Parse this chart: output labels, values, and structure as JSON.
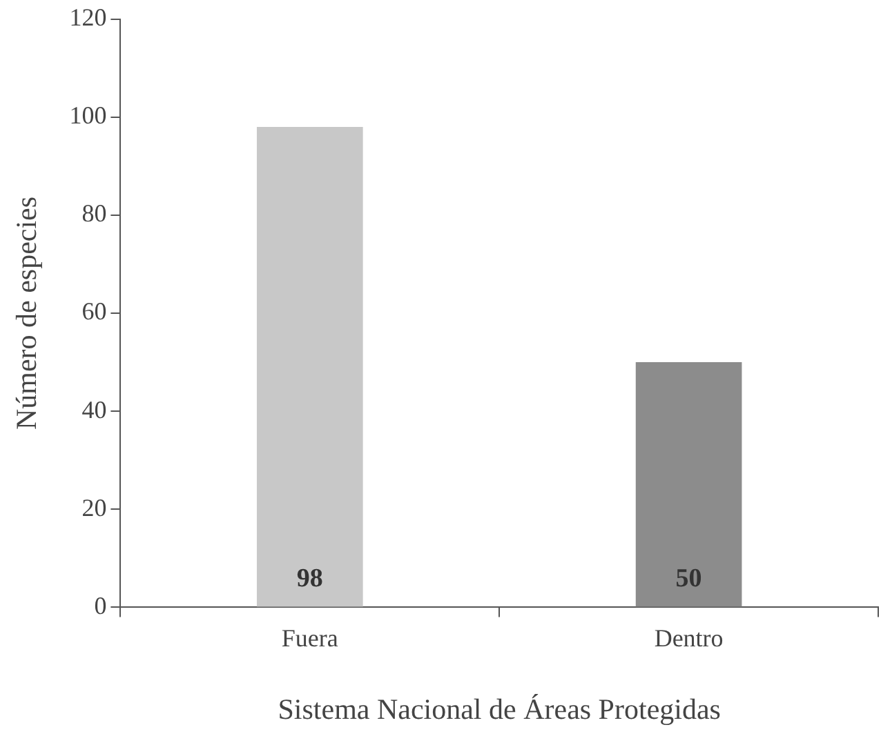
{
  "chart_data": {
    "type": "bar",
    "xlabel": "Sistema Nacional de Áreas Protegidas",
    "ylabel": "Número de especies",
    "categories": [
      "Fuera",
      "Dentro"
    ],
    "values": [
      98,
      50
    ],
    "colors": [
      "#c8c8c8",
      "#8c8c8c"
    ],
    "ylim": [
      0,
      120
    ],
    "yticks": [
      0,
      20,
      40,
      60,
      80,
      100,
      120
    ],
    "grid": false,
    "legend": false,
    "data_labels": true
  }
}
